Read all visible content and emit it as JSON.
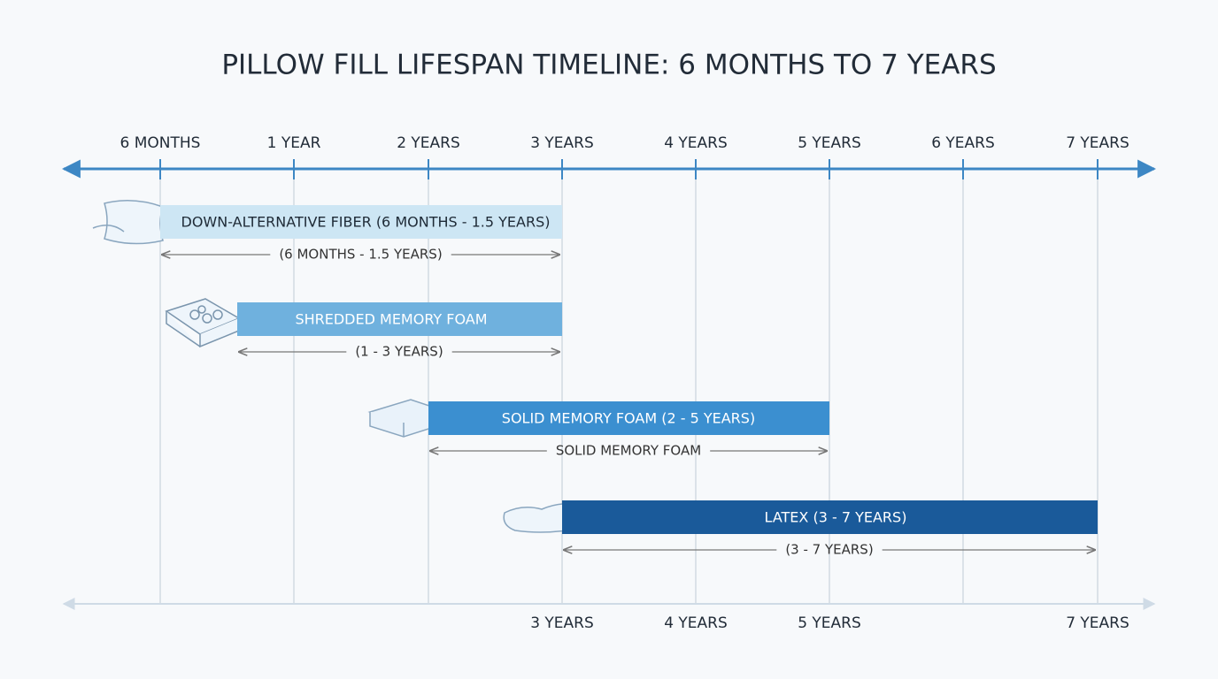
{
  "title": "PILLOW FILL LIFESPAN TIMELINE: 6 MONTHS TO 7 YEARS",
  "top_axis": [
    "6 MONTHS",
    "1 YEAR",
    "2 YEARS",
    "3 YEARS",
    "4 YEARS",
    "5 YEARS",
    "6 YEARS",
    "7 YEARS"
  ],
  "rows": [
    {
      "label": "DOWN-ALTERNATIVE FIBER (6 MONTHS - 1.5 YEARS)",
      "range_label": "(6 MONTHS - 1.5 YEARS)"
    },
    {
      "label": "SHREDDED MEMORY FOAM",
      "range_label": "(1 - 3 YEARS)"
    },
    {
      "label": "SOLID MEMORY FOAM (2 - 5 YEARS)",
      "range_label": "SOLID MEMORY FOAM"
    },
    {
      "label": "LATEX (3 - 7 YEARS)",
      "range_label": "(3 - 7 YEARS)"
    }
  ],
  "bottom_axis": [
    "3 YEARS",
    "4 YEARS",
    "5 YEARS",
    "7 YEARS"
  ]
}
